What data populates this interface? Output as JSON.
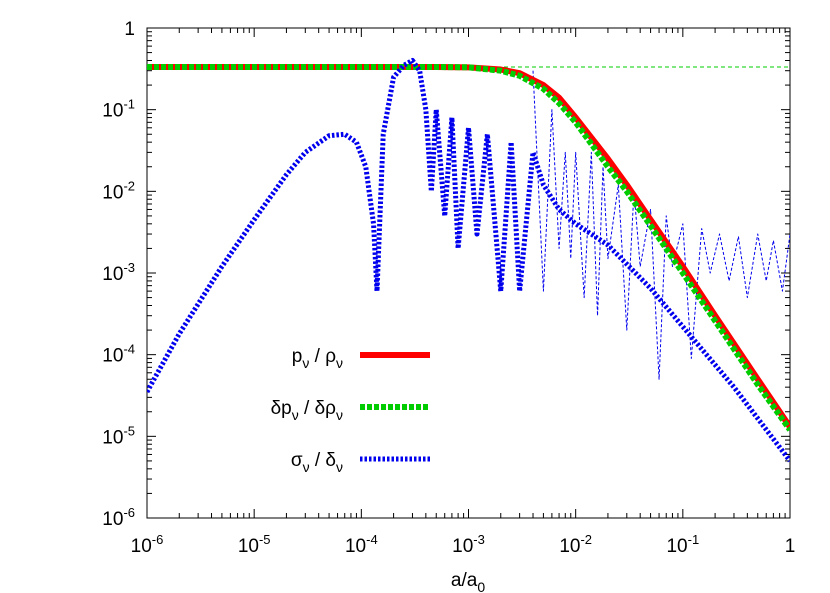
{
  "chart_data": {
    "type": "line",
    "title": "",
    "xlabel": "a/a",
    "xlabel_sub": "0",
    "ylabel": "",
    "xscale": "log",
    "yscale": "log",
    "xlim": [
      1e-06,
      1
    ],
    "ylim": [
      1e-06,
      1
    ],
    "xticks": [
      {
        "base": "10",
        "exp": "-6"
      },
      {
        "base": "10",
        "exp": "-5"
      },
      {
        "base": "10",
        "exp": "-4"
      },
      {
        "base": "10",
        "exp": "-3"
      },
      {
        "base": "10",
        "exp": "-2"
      },
      {
        "base": "10",
        "exp": "-1"
      },
      {
        "base": "1",
        "exp": ""
      }
    ],
    "yticks": [
      {
        "base": "10",
        "exp": "-6"
      },
      {
        "base": "10",
        "exp": "-5"
      },
      {
        "base": "10",
        "exp": "-4"
      },
      {
        "base": "10",
        "exp": "-3"
      },
      {
        "base": "10",
        "exp": "-2"
      },
      {
        "base": "10",
        "exp": "-1"
      },
      {
        "base": "1",
        "exp": ""
      }
    ],
    "grid": false,
    "legend_position": "bottom-left",
    "reference_line": {
      "y": 0.3333,
      "color": "#00cc00",
      "style": "dashed"
    },
    "series": [
      {
        "key": "p_over_rho",
        "legend": {
          "n1": "p",
          "s1": "ν",
          "mid": " / ",
          "n2": "ρ",
          "s2": "ν"
        },
        "color": "#ff0000",
        "style": "solid",
        "x": [
          1e-06,
          1e-05,
          0.0001,
          0.0005,
          0.001,
          0.002,
          0.003,
          0.005,
          0.007,
          0.01,
          0.02,
          0.03,
          0.05,
          0.1,
          0.2,
          0.5,
          1
        ],
        "y": [
          0.333,
          0.333,
          0.333,
          0.333,
          0.33,
          0.31,
          0.28,
          0.2,
          0.14,
          0.08,
          0.025,
          0.012,
          0.0045,
          0.0012,
          0.0003,
          5e-05,
          1.3e-05
        ]
      },
      {
        "key": "dp_over_drho",
        "legend": {
          "n1": "δp",
          "s1": "ν",
          "mid": " / ",
          "n2": "δρ",
          "s2": "ν"
        },
        "color": "#00cc00",
        "style": "dashed",
        "x": [
          1e-06,
          1e-05,
          0.0001,
          0.0005,
          0.001,
          0.002,
          0.003,
          0.005,
          0.007,
          0.01,
          0.02,
          0.03,
          0.05,
          0.1,
          0.2,
          0.5,
          1
        ],
        "y": [
          0.333,
          0.333,
          0.333,
          0.333,
          0.33,
          0.3,
          0.26,
          0.18,
          0.12,
          0.07,
          0.02,
          0.01,
          0.0038,
          0.001,
          0.00026,
          4.3e-05,
          1.2e-05
        ]
      },
      {
        "key": "sigma_over_delta",
        "legend": {
          "n1": "σ",
          "s1": "ν",
          "mid": " / ",
          "n2": "δ",
          "s2": "ν"
        },
        "color": "#0000ee",
        "style": "dotted",
        "x": [
          1e-06,
          2e-06,
          5e-06,
          1e-05,
          2e-05,
          3e-05,
          5e-05,
          7e-05,
          9e-05,
          0.00011,
          0.00013,
          0.00014,
          0.00016,
          0.0002,
          0.00025,
          0.0003,
          0.00035,
          0.0004,
          0.00045,
          0.0005,
          0.0006,
          0.0007,
          0.0008,
          0.001,
          0.0012,
          0.0015,
          0.002,
          0.0025,
          0.003,
          0.004,
          0.005,
          0.007,
          0.01,
          0.02,
          0.05,
          0.1,
          0.3,
          1
        ],
        "y": [
          3.5e-05,
          0.00018,
          0.0012,
          0.0045,
          0.016,
          0.03,
          0.048,
          0.05,
          0.04,
          0.02,
          0.004,
          0.0006,
          0.05,
          0.25,
          0.35,
          0.4,
          0.3,
          0.1,
          0.01,
          0.1,
          0.005,
          0.08,
          0.002,
          0.06,
          0.003,
          0.05,
          0.0006,
          0.04,
          0.0006,
          0.03,
          0.012,
          0.006,
          0.004,
          0.0022,
          0.00065,
          0.00022,
          4e-05,
          5e-06
        ]
      },
      {
        "key": "sigma_over_delta_oscillation",
        "legend": null,
        "color": "#0000ee",
        "style": "fine-dashed",
        "x": [
          0.004,
          0.005,
          0.006,
          0.007,
          0.008,
          0.009,
          0.01,
          0.012,
          0.014,
          0.016,
          0.018,
          0.02,
          0.025,
          0.03,
          0.035,
          0.04,
          0.05,
          0.06,
          0.07,
          0.08,
          0.1,
          0.12,
          0.15,
          0.18,
          0.22,
          0.27,
          0.33,
          0.4,
          0.5,
          0.6,
          0.7,
          0.85,
          1
        ],
        "y": [
          0.3,
          0.0006,
          0.1,
          0.002,
          0.03,
          0.0015,
          0.03,
          0.0005,
          0.03,
          0.0003,
          0.02,
          0.0015,
          0.012,
          0.0002,
          0.01,
          0.0012,
          0.006,
          5e-05,
          0.005,
          0.0012,
          0.004,
          9e-05,
          0.0035,
          0.001,
          0.003,
          0.0008,
          0.0028,
          0.0005,
          0.003,
          0.0008,
          0.0025,
          0.0006,
          0.003
        ]
      }
    ]
  }
}
